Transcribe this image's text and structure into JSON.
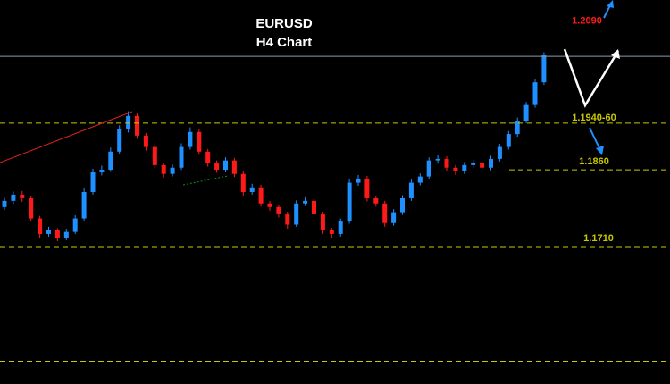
{
  "chart_data": {
    "type": "candlestick",
    "title": "EURUSD",
    "subtitle": "H4 Chart",
    "ylim": [
      1.1446,
      1.2188
    ],
    "up_color": "#1e90ff",
    "down_color": "#ff1a1a",
    "open": [
      1.1788,
      1.18,
      1.1812,
      1.1805,
      1.1766,
      1.1736,
      1.1743,
      1.1729,
      1.174,
      1.1766,
      1.1817,
      1.1855,
      1.186,
      1.1895,
      1.1938,
      1.1964,
      1.1926,
      1.1904,
      1.1869,
      1.1852,
      1.1864,
      1.1904,
      1.1933,
      1.1895,
      1.1873,
      1.186,
      1.1878,
      1.1852,
      1.1817,
      1.1826,
      1.1795,
      1.1788,
      1.1774,
      1.1754,
      1.1795,
      1.18,
      1.1774,
      1.1743,
      1.1736,
      1.176,
      1.1835,
      1.1843,
      1.1805,
      1.1795,
      1.1757,
      1.1778,
      1.1805,
      1.1835,
      1.1847,
      1.1878,
      1.1881,
      1.1864,
      1.1857,
      1.1869,
      1.1874,
      1.1864,
      1.1881,
      1.1904,
      1.1929,
      1.1955,
      1.1985,
      1.2029
    ],
    "high": [
      1.1806,
      1.1818,
      1.1819,
      1.181,
      1.1771,
      1.175,
      1.1747,
      1.1746,
      1.1772,
      1.1824,
      1.1862,
      1.1868,
      1.1903,
      1.1946,
      1.1973,
      1.1969,
      1.1931,
      1.1909,
      1.1874,
      1.187,
      1.1911,
      1.1942,
      1.1938,
      1.19,
      1.1878,
      1.1884,
      1.1883,
      1.1857,
      1.1833,
      1.1831,
      1.18,
      1.1793,
      1.1779,
      1.1801,
      1.1807,
      1.1805,
      1.1779,
      1.1748,
      1.1766,
      1.1842,
      1.185,
      1.1848,
      1.181,
      1.18,
      1.1784,
      1.1811,
      1.1841,
      1.1853,
      1.1884,
      1.1888,
      1.1886,
      1.1869,
      1.1875,
      1.188,
      1.1879,
      1.1887,
      1.191,
      1.1935,
      1.1961,
      1.1991,
      1.2035,
      1.2087
    ],
    "low": [
      1.1782,
      1.1794,
      1.1798,
      1.176,
      1.1728,
      1.1731,
      1.1722,
      1.1724,
      1.1736,
      1.1762,
      1.1812,
      1.1849,
      1.1856,
      1.189,
      1.1932,
      1.192,
      1.1897,
      1.1862,
      1.1845,
      1.1847,
      1.186,
      1.1899,
      1.1889,
      1.1866,
      1.1854,
      1.1855,
      1.1846,
      1.181,
      1.1812,
      1.1789,
      1.1781,
      1.1768,
      1.1746,
      1.175,
      1.179,
      1.1768,
      1.1736,
      1.1727,
      1.1731,
      1.1756,
      1.1829,
      1.1799,
      1.1789,
      1.175,
      1.1752,
      1.1773,
      1.18,
      1.183,
      1.1842,
      1.1872,
      1.1857,
      1.185,
      1.1852,
      1.1864,
      1.1858,
      1.1859,
      1.1876,
      1.1899,
      1.1924,
      1.195,
      1.198,
      1.2024
    ],
    "close": [
      1.18,
      1.1812,
      1.1805,
      1.1766,
      1.1736,
      1.1743,
      1.1729,
      1.174,
      1.1766,
      1.1817,
      1.1855,
      1.186,
      1.1895,
      1.1938,
      1.1964,
      1.1926,
      1.1904,
      1.1869,
      1.1852,
      1.1864,
      1.1904,
      1.1933,
      1.1895,
      1.1873,
      1.186,
      1.1878,
      1.1852,
      1.1817,
      1.1826,
      1.1795,
      1.1788,
      1.1774,
      1.1754,
      1.1795,
      1.18,
      1.1774,
      1.1743,
      1.1736,
      1.176,
      1.1835,
      1.1843,
      1.1805,
      1.1795,
      1.1757,
      1.1778,
      1.1805,
      1.1835,
      1.1847,
      1.1878,
      1.1881,
      1.1864,
      1.1857,
      1.1869,
      1.1874,
      1.1864,
      1.1881,
      1.1904,
      1.1929,
      1.1955,
      1.1985,
      1.2029,
      1.2081
    ],
    "levels": [
      {
        "value": 1.2079,
        "style": "solid",
        "color": "#8c9aa8"
      },
      {
        "value": 1.195,
        "label": "1.1940-60",
        "style": "dashed",
        "color": "#c8c800"
      },
      {
        "value": 1.186,
        "label": "1.1860",
        "style": "dashed",
        "color": "#c8c800"
      },
      {
        "value": 1.171,
        "label": "1.1710",
        "style": "dashed",
        "color": "#c8c800"
      },
      {
        "value": 1.149,
        "style": "dashed",
        "color": "#c8c800"
      }
    ],
    "target": {
      "value": 1.209,
      "label": "1.2090",
      "color": "#ff1a1a"
    }
  }
}
